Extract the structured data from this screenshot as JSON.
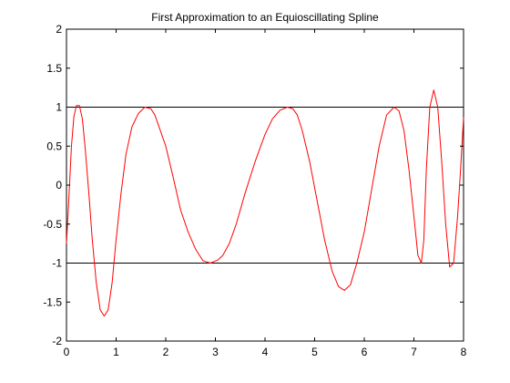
{
  "chart_data": {
    "type": "line",
    "title": "First Approximation to an Equioscillating Spline",
    "xlabel": "",
    "ylabel": "",
    "xlim": [
      0,
      8
    ],
    "ylim": [
      -2,
      2
    ],
    "xticks": [
      0,
      1,
      2,
      3,
      4,
      5,
      6,
      7,
      8
    ],
    "yticks": [
      -2,
      -1.5,
      -1,
      -0.5,
      0,
      0.5,
      1,
      1.5,
      2
    ],
    "xtick_labels": [
      "0",
      "1",
      "2",
      "3",
      "4",
      "5",
      "6",
      "7",
      "8"
    ],
    "ytick_labels": [
      "-2",
      "-1.5",
      "-1",
      "-0.5",
      "0",
      "0.5",
      "1",
      "1.5",
      "2"
    ],
    "grid": false,
    "series": [
      {
        "color": "#ff0000",
        "x": [
          0,
          0.05,
          0.1,
          0.15,
          0.2,
          0.26,
          0.32,
          0.38,
          0.45,
          0.52,
          0.6,
          0.68,
          0.76,
          0.84,
          0.92,
          1.0,
          1.1,
          1.2,
          1.32,
          1.45,
          1.58,
          1.7,
          1.78,
          1.88,
          2.0,
          2.15,
          2.3,
          2.45,
          2.6,
          2.75,
          2.9,
          3.05,
          3.15,
          3.28,
          3.42,
          3.6,
          3.8,
          4.0,
          4.15,
          4.3,
          4.45,
          4.56,
          4.65,
          4.75,
          4.9,
          5.05,
          5.2,
          5.35,
          5.48,
          5.6,
          5.72,
          5.85,
          6.0,
          6.15,
          6.3,
          6.45,
          6.6,
          6.7,
          6.8,
          6.9,
          7.0,
          7.08,
          7.15,
          7.2,
          7.25,
          7.32,
          7.4,
          7.48,
          7.56,
          7.64,
          7.72,
          7.8,
          7.88,
          7.94,
          8.0
        ],
        "y": [
          -0.75,
          -0.15,
          0.5,
          0.88,
          1.02,
          1.02,
          0.85,
          0.45,
          -0.1,
          -0.7,
          -1.25,
          -1.6,
          -1.68,
          -1.6,
          -1.25,
          -0.7,
          -0.1,
          0.4,
          0.75,
          0.92,
          1.0,
          0.98,
          0.9,
          0.72,
          0.5,
          0.1,
          -0.32,
          -0.6,
          -0.82,
          -0.97,
          -1.0,
          -0.96,
          -0.9,
          -0.75,
          -0.5,
          -0.1,
          0.3,
          0.65,
          0.85,
          0.96,
          1.0,
          0.98,
          0.9,
          0.7,
          0.3,
          -0.2,
          -0.7,
          -1.1,
          -1.3,
          -1.35,
          -1.28,
          -1.0,
          -0.6,
          -0.05,
          0.5,
          0.9,
          1.0,
          0.95,
          0.7,
          0.2,
          -0.4,
          -0.9,
          -1.0,
          -0.7,
          0.2,
          1.0,
          1.22,
          1.0,
          0.3,
          -0.5,
          -1.05,
          -1.0,
          -0.4,
          0.2,
          0.87
        ]
      }
    ],
    "reference_lines": [
      {
        "y": 1,
        "color": "#000000"
      },
      {
        "y": -1,
        "color": "#000000"
      }
    ]
  }
}
